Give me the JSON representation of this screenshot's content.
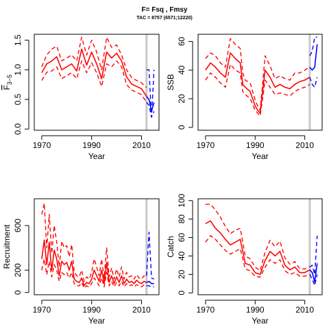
{
  "page": {
    "title": "F= Fsq , Fmsy",
    "subtitle": "TAC = 8757 (6571;12220)"
  },
  "colors": {
    "historical": "#ff0000",
    "projection": "#0000ff",
    "divider": "#c8c8c8"
  },
  "chart_data": [
    {
      "type": "line",
      "title": "",
      "xlabel": "Year",
      "ylabel": "F3-5",
      "ylabel_main": "F",
      "ylabel_sub": "3−5",
      "xlim": [
        1967,
        2017
      ],
      "ylim": [
        -0.02,
        1.6
      ],
      "xticks": [
        1970,
        1990,
        2010
      ],
      "yticks": [
        0.0,
        0.5,
        1.0,
        1.5
      ],
      "ytick_labels": [
        "0.0",
        "0.5",
        "1.0",
        "1.5"
      ],
      "divider_year": 2012,
      "series": [
        {
          "role": "median",
          "color": "historical",
          "dash": "solid",
          "x": [
            1970,
            1972,
            1974,
            1976,
            1978,
            1980,
            1982,
            1984,
            1986,
            1988,
            1990,
            1992,
            1994,
            1996,
            1998,
            2000,
            2002,
            2004,
            2006,
            2008,
            2010,
            2012
          ],
          "y": [
            0.95,
            1.1,
            1.15,
            1.22,
            1.0,
            1.05,
            1.1,
            0.98,
            1.35,
            1.08,
            1.3,
            1.1,
            0.85,
            1.3,
            1.2,
            1.28,
            1.15,
            0.88,
            0.76,
            0.72,
            0.68,
            0.55
          ]
        },
        {
          "role": "upper",
          "color": "historical",
          "dash": "dashed",
          "x": [
            1970,
            1972,
            1974,
            1976,
            1978,
            1980,
            1982,
            1984,
            1986,
            1988,
            1990,
            1992,
            1994,
            1996,
            1998,
            2000,
            2002,
            2004,
            2006,
            2008,
            2010,
            2012
          ],
          "y": [
            1.05,
            1.25,
            1.35,
            1.4,
            1.15,
            1.2,
            1.25,
            1.15,
            1.55,
            1.25,
            1.5,
            1.3,
            1.0,
            1.55,
            1.38,
            1.42,
            1.25,
            1.0,
            0.87,
            0.82,
            0.78,
            0.7
          ]
        },
        {
          "role": "lower",
          "color": "historical",
          "dash": "dashed",
          "x": [
            1970,
            1972,
            1974,
            1976,
            1978,
            1980,
            1982,
            1984,
            1986,
            1988,
            1990,
            1992,
            1994,
            1996,
            1998,
            2000,
            2002,
            2004,
            2006,
            2008,
            2010,
            2012
          ],
          "y": [
            0.82,
            0.96,
            0.98,
            1.05,
            0.85,
            0.9,
            0.95,
            0.85,
            1.15,
            0.95,
            1.12,
            0.95,
            0.72,
            1.1,
            1.05,
            1.15,
            1.05,
            0.75,
            0.66,
            0.62,
            0.58,
            0.45
          ]
        },
        {
          "role": "median",
          "color": "projection",
          "dash": "solid",
          "x": [
            2012,
            2013,
            2014,
            2015
          ],
          "y": [
            0.55,
            0.5,
            0.3,
            0.45
          ]
        },
        {
          "role": "upper",
          "color": "projection",
          "dash": "dashed",
          "x": [
            2012,
            2013,
            2014,
            2015
          ],
          "y": [
            1.0,
            1.0,
            0.2,
            1.0
          ]
        },
        {
          "role": "lower",
          "color": "projection",
          "dash": "dashed",
          "x": [
            2012,
            2013,
            2014,
            2015
          ],
          "y": [
            0.45,
            0.4,
            0.2,
            0.3
          ]
        }
      ]
    },
    {
      "type": "line",
      "title": "",
      "xlabel": "Year",
      "ylabel": "SSB",
      "xlim": [
        1967,
        2017
      ],
      "ylim": [
        -2,
        65
      ],
      "xticks": [
        1970,
        1990,
        2010
      ],
      "yticks": [
        0,
        20,
        40,
        60
      ],
      "ytick_labels": [
        "0",
        "20",
        "40",
        "60"
      ],
      "divider_year": 2012,
      "series": [
        {
          "role": "median",
          "color": "historical",
          "dash": "solid",
          "x": [
            1970,
            1972,
            1974,
            1976,
            1978,
            1980,
            1982,
            1984,
            1985,
            1986,
            1988,
            1990,
            1991,
            1992,
            1993,
            1994,
            1996,
            1998,
            2000,
            2002,
            2004,
            2006,
            2008,
            2010,
            2012
          ],
          "y": [
            40,
            45,
            42,
            38,
            35,
            52,
            48,
            45,
            30,
            28,
            25,
            15,
            12,
            10,
            25,
            40,
            35,
            28,
            30,
            28,
            27,
            30,
            32,
            33,
            35
          ]
        },
        {
          "role": "upper",
          "color": "historical",
          "dash": "dashed",
          "x": [
            1970,
            1972,
            1974,
            1976,
            1978,
            1980,
            1982,
            1984,
            1985,
            1986,
            1988,
            1990,
            1991,
            1992,
            1993,
            1994,
            1996,
            1998,
            2000,
            2002,
            2004,
            2006,
            2008,
            2010,
            2012
          ],
          "y": [
            48,
            52,
            50,
            45,
            42,
            62,
            58,
            55,
            38,
            33,
            31,
            19,
            15,
            12,
            30,
            50,
            43,
            34,
            36,
            34,
            33,
            38,
            38,
            40,
            42
          ]
        },
        {
          "role": "lower",
          "color": "historical",
          "dash": "dashed",
          "x": [
            1970,
            1972,
            1974,
            1976,
            1978,
            1980,
            1982,
            1984,
            1985,
            1986,
            1988,
            1990,
            1991,
            1992,
            1993,
            1994,
            1996,
            1998,
            2000,
            2002,
            2004,
            2006,
            2008,
            2010,
            2012
          ],
          "y": [
            33,
            38,
            35,
            31,
            28,
            44,
            40,
            38,
            25,
            23,
            20,
            12,
            10,
            8,
            20,
            33,
            28,
            23,
            24,
            23,
            22,
            25,
            27,
            28,
            30
          ]
        },
        {
          "role": "median",
          "color": "projection",
          "dash": "solid",
          "x": [
            2012,
            2013,
            2014,
            2015
          ],
          "y": [
            42,
            40,
            42,
            58
          ]
        },
        {
          "role": "upper",
          "color": "projection",
          "dash": "dashed",
          "x": [
            2012,
            2013,
            2014,
            2015
          ],
          "y": [
            50,
            53,
            63,
            63
          ]
        },
        {
          "role": "lower",
          "color": "projection",
          "dash": "dashed",
          "x": [
            2012,
            2013,
            2014,
            2015
          ],
          "y": [
            35,
            30,
            28,
            35
          ]
        }
      ]
    },
    {
      "type": "line",
      "title": "",
      "xlabel": "Year",
      "ylabel": "Recruitment",
      "xlim": [
        1967,
        2017
      ],
      "ylim": [
        -20,
        840
      ],
      "xticks": [
        1970,
        1990,
        2010
      ],
      "yticks": [
        0,
        200,
        600
      ],
      "ytick_labels": [
        "0",
        "200",
        "600"
      ],
      "divider_year": 2012,
      "series": [
        {
          "role": "median",
          "color": "historical",
          "dash": "solid",
          "x": [
            1970,
            1971,
            1972,
            1973,
            1974,
            1975,
            1976,
            1977,
            1978,
            1979,
            1980,
            1981,
            1982,
            1983,
            1984,
            1985,
            1986,
            1987,
            1988,
            1989,
            1990,
            1991,
            1992,
            1993,
            1994,
            1995,
            1996,
            1997,
            1998,
            1999,
            2000,
            2001,
            2002,
            2003,
            2004,
            2005,
            2006,
            2007,
            2008,
            2009,
            2010,
            2011,
            2012
          ],
          "y": [
            300,
            470,
            250,
            450,
            200,
            380,
            300,
            150,
            280,
            250,
            270,
            200,
            280,
            120,
            100,
            90,
            130,
            60,
            90,
            80,
            120,
            200,
            150,
            100,
            200,
            80,
            270,
            90,
            150,
            80,
            140,
            90,
            150,
            80,
            120,
            90,
            100,
            80,
            110,
            90,
            80,
            100,
            90
          ]
        },
        {
          "role": "upper",
          "color": "historical",
          "dash": "dashed",
          "x": [
            1970,
            1971,
            1972,
            1973,
            1974,
            1975,
            1976,
            1977,
            1978,
            1979,
            1980,
            1981,
            1982,
            1983,
            1984,
            1985,
            1986,
            1987,
            1988,
            1989,
            1990,
            1991,
            1992,
            1993,
            1994,
            1995,
            1996,
            1997,
            1998,
            1999,
            2000,
            2001,
            2002,
            2003,
            2004,
            2005,
            2006,
            2007,
            2008,
            2009,
            2010,
            2011,
            2012
          ],
          "y": [
            700,
            800,
            400,
            700,
            350,
            600,
            450,
            230,
            460,
            400,
            420,
            320,
            430,
            190,
            150,
            140,
            200,
            100,
            140,
            120,
            180,
            300,
            230,
            150,
            300,
            130,
            400,
            140,
            220,
            120,
            210,
            140,
            230,
            120,
            180,
            140,
            150,
            120,
            160,
            130,
            120,
            150,
            140
          ]
        },
        {
          "role": "lower",
          "color": "historical",
          "dash": "dashed",
          "x": [
            1970,
            1971,
            1972,
            1973,
            1974,
            1975,
            1976,
            1977,
            1978,
            1979,
            1980,
            1981,
            1982,
            1983,
            1984,
            1985,
            1986,
            1987,
            1988,
            1989,
            1990,
            1991,
            1992,
            1993,
            1994,
            1995,
            1996,
            1997,
            1998,
            1999,
            2000,
            2001,
            2002,
            2003,
            2004,
            2005,
            2006,
            2007,
            2008,
            2009,
            2010,
            2011,
            2012
          ],
          "y": [
            200,
            300,
            160,
            280,
            140,
            250,
            200,
            100,
            180,
            160,
            180,
            130,
            180,
            80,
            60,
            60,
            90,
            40,
            60,
            50,
            80,
            130,
            100,
            60,
            130,
            50,
            180,
            60,
            100,
            50,
            90,
            60,
            100,
            50,
            80,
            60,
            70,
            50,
            70,
            60,
            50,
            70,
            60
          ]
        },
        {
          "role": "median",
          "color": "projection",
          "dash": "solid",
          "x": [
            2012,
            2013,
            2014,
            2015
          ],
          "y": [
            90,
            100,
            80,
            80
          ]
        },
        {
          "role": "upper",
          "color": "projection",
          "dash": "dashed",
          "x": [
            2012,
            2013,
            2014,
            2015
          ],
          "y": [
            150,
            540,
            130,
            120
          ]
        },
        {
          "role": "lower",
          "color": "projection",
          "dash": "dashed",
          "x": [
            2012,
            2013,
            2014,
            2015
          ],
          "y": [
            60,
            60,
            50,
            50
          ]
        }
      ]
    },
    {
      "type": "line",
      "title": "",
      "xlabel": "Year",
      "ylabel": "Catch",
      "xlim": [
        1967,
        2017
      ],
      "ylim": [
        -2,
        102
      ],
      "xticks": [
        1970,
        1990,
        2010
      ],
      "yticks": [
        0,
        20,
        40,
        60,
        80,
        100
      ],
      "ytick_labels": [
        "0",
        "20",
        "40",
        "60",
        "80",
        "100"
      ],
      "divider_year": 2012,
      "series": [
        {
          "role": "median",
          "color": "historical",
          "dash": "solid",
          "x": [
            1970,
            1972,
            1974,
            1976,
            1978,
            1980,
            1982,
            1984,
            1986,
            1988,
            1990,
            1992,
            1994,
            1996,
            1998,
            2000,
            2002,
            2004,
            2006,
            2008,
            2010,
            2012
          ],
          "y": [
            75,
            78,
            70,
            65,
            58,
            52,
            55,
            58,
            32,
            30,
            22,
            20,
            35,
            45,
            40,
            45,
            30,
            25,
            28,
            22,
            22,
            25
          ]
        },
        {
          "role": "upper",
          "color": "historical",
          "dash": "dashed",
          "x": [
            1970,
            1972,
            1974,
            1976,
            1978,
            1980,
            1982,
            1984,
            1986,
            1988,
            1990,
            1992,
            1994,
            1996,
            1998,
            2000,
            2002,
            2004,
            2006,
            2008,
            2010,
            2012
          ],
          "y": [
            96,
            96,
            90,
            82,
            72,
            64,
            68,
            70,
            40,
            37,
            28,
            24,
            44,
            57,
            50,
            56,
            38,
            31,
            34,
            26,
            26,
            28
          ]
        },
        {
          "role": "lower",
          "color": "historical",
          "dash": "dashed",
          "x": [
            1970,
            1972,
            1974,
            1976,
            1978,
            1980,
            1982,
            1984,
            1986,
            1988,
            1990,
            1992,
            1994,
            1996,
            1998,
            2000,
            2002,
            2004,
            2006,
            2008,
            2010,
            2012
          ],
          "y": [
            55,
            62,
            58,
            52,
            46,
            42,
            45,
            48,
            26,
            24,
            18,
            17,
            28,
            36,
            32,
            36,
            24,
            20,
            22,
            18,
            18,
            20
          ]
        },
        {
          "role": "median",
          "color": "projection",
          "dash": "solid",
          "x": [
            2012,
            2013,
            2014,
            2015
          ],
          "y": [
            25,
            22,
            12,
            32
          ]
        },
        {
          "role": "upper",
          "color": "projection",
          "dash": "dashed",
          "x": [
            2012,
            2013,
            2014,
            2015
          ],
          "y": [
            28,
            30,
            20,
            62
          ]
        },
        {
          "role": "lower",
          "color": "projection",
          "dash": "dashed",
          "x": [
            2012,
            2013,
            2014,
            2015
          ],
          "y": [
            20,
            15,
            8,
            20
          ]
        }
      ]
    }
  ]
}
